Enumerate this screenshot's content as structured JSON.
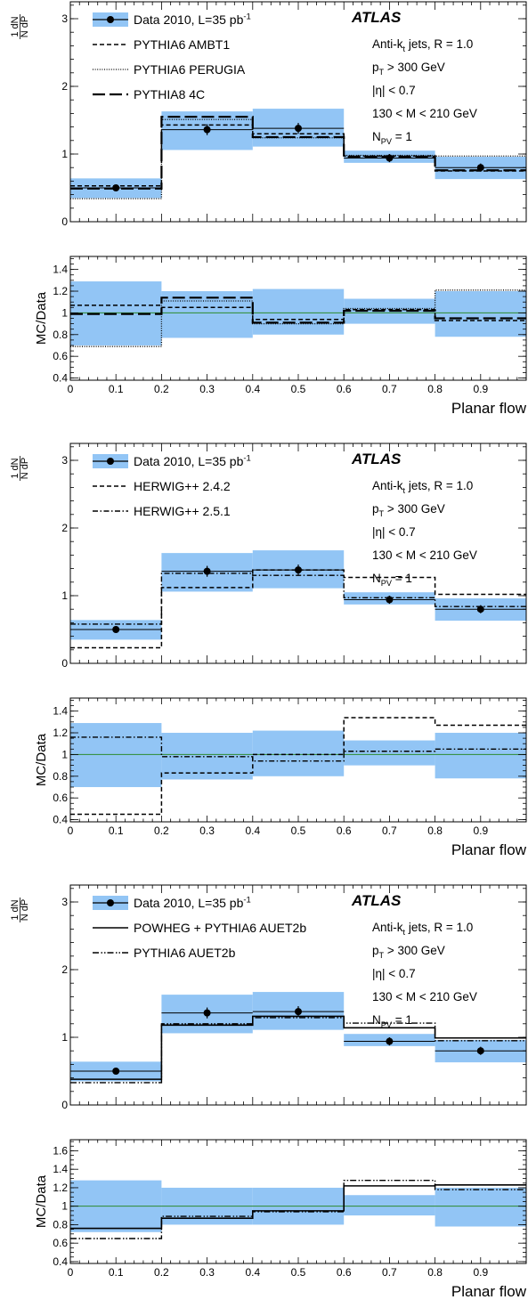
{
  "chart_data": [
    {
      "type": "step",
      "xlabel": "Planar flow",
      "ylabel_top": "1/N dN/dP",
      "ylabel_ratio": "MC/Data",
      "xlim": [
        0,
        1
      ],
      "ylim_top": [
        0,
        3.25
      ],
      "ylim_ratio": [
        0.38,
        1.52
      ],
      "ratio_ticks": [
        0.4,
        0.6,
        0.8,
        1,
        1.2,
        1.4
      ],
      "atlas_label": "ATLAS",
      "info_lines": [
        "Anti-k_t jets, R = 1.0",
        "p_T > 300 GeV",
        "|η| < 0.7",
        "130 < M < 210 GeV",
        "N_PV = 1"
      ],
      "data": {
        "name": "Data 2010, L=35 pb^-1",
        "bins": [
          [
            0,
            0.2
          ],
          [
            0.2,
            0.4
          ],
          [
            0.4,
            0.6
          ],
          [
            0.6,
            0.8
          ],
          [
            0.8,
            1.0
          ]
        ],
        "x": [
          0.1,
          0.3,
          0.5,
          0.7,
          0.9
        ],
        "y": [
          0.5,
          1.36,
          1.38,
          0.94,
          0.8
        ],
        "err": [
          0.03,
          0.08,
          0.08,
          0.06,
          0.06
        ],
        "band": [
          [
            0.35,
            0.64
          ],
          [
            1.06,
            1.63
          ],
          [
            1.11,
            1.67
          ],
          [
            0.87,
            1.05
          ],
          [
            0.63,
            0.96
          ]
        ],
        "ratio_band": [
          [
            0.7,
            1.29
          ],
          [
            0.77,
            1.2
          ],
          [
            0.8,
            1.22
          ],
          [
            0.9,
            1.13
          ],
          [
            0.78,
            1.2
          ]
        ]
      },
      "series": [
        {
          "name": "PYTHIA6 AMBT1",
          "style": "dashed",
          "y": [
            0.53,
            1.43,
            1.3,
            0.97,
            0.75
          ],
          "ratio": [
            1.07,
            1.05,
            0.94,
            1.03,
            0.93
          ]
        },
        {
          "name": "PYTHIA6 PERUGIA",
          "style": "dotted",
          "y": [
            0.34,
            1.51,
            1.24,
            0.98,
            0.97
          ],
          "ratio": [
            0.69,
            1.11,
            0.9,
            1.04,
            1.21
          ]
        },
        {
          "name": "PYTHIA8 4C",
          "style": "longdash",
          "y": [
            0.49,
            1.55,
            1.25,
            0.96,
            0.76
          ],
          "ratio": [
            0.99,
            1.14,
            0.91,
            1.02,
            0.95
          ]
        }
      ]
    },
    {
      "type": "step",
      "xlabel": "Planar flow",
      "ylabel_top": "1/N dN/dP",
      "ylabel_ratio": "MC/Data",
      "xlim": [
        0,
        1
      ],
      "ylim_top": [
        0,
        3.25
      ],
      "ylim_ratio": [
        0.38,
        1.52
      ],
      "ratio_ticks": [
        0.4,
        0.6,
        0.8,
        1,
        1.2,
        1.4
      ],
      "atlas_label": "ATLAS",
      "info_lines": [
        "Anti-k_t jets, R = 1.0",
        "p_T > 300 GeV",
        "|η| < 0.7",
        "130 < M < 210 GeV",
        "N_PV = 1"
      ],
      "data": {
        "name": "Data 2010, L=35 pb^-1",
        "bins": [
          [
            0,
            0.2
          ],
          [
            0.2,
            0.4
          ],
          [
            0.4,
            0.6
          ],
          [
            0.6,
            0.8
          ],
          [
            0.8,
            1.0
          ]
        ],
        "x": [
          0.1,
          0.3,
          0.5,
          0.7,
          0.9
        ],
        "y": [
          0.5,
          1.36,
          1.38,
          0.94,
          0.8
        ],
        "err": [
          0.03,
          0.08,
          0.08,
          0.06,
          0.06
        ],
        "band": [
          [
            0.35,
            0.64
          ],
          [
            1.06,
            1.63
          ],
          [
            1.11,
            1.67
          ],
          [
            0.87,
            1.05
          ],
          [
            0.63,
            0.96
          ]
        ],
        "ratio_band": [
          [
            0.7,
            1.29
          ],
          [
            0.77,
            1.2
          ],
          [
            0.8,
            1.22
          ],
          [
            0.9,
            1.13
          ],
          [
            0.78,
            1.2
          ]
        ]
      },
      "series": [
        {
          "name": "HERWIG++ 2.4.2",
          "style": "dashed",
          "y": [
            0.23,
            1.12,
            1.38,
            1.27,
            1.02
          ],
          "ratio": [
            0.45,
            0.83,
            1.0,
            1.34,
            1.27
          ]
        },
        {
          "name": "HERWIG++ 2.5.1",
          "style": "dashdot",
          "y": [
            0.58,
            1.33,
            1.3,
            0.97,
            0.84
          ],
          "ratio": [
            1.16,
            0.98,
            0.94,
            1.03,
            1.05
          ]
        }
      ]
    },
    {
      "type": "step",
      "xlabel": "Planar flow",
      "ylabel_top": "1/N dN/dP",
      "ylabel_ratio": "MC/Data",
      "xlim": [
        0,
        1
      ],
      "ylim_top": [
        0,
        3.25
      ],
      "ylim_ratio": [
        0.38,
        1.72
      ],
      "ratio_ticks": [
        0.4,
        0.6,
        0.8,
        1,
        1.2,
        1.4,
        1.6
      ],
      "atlas_label": "ATLAS",
      "info_lines": [
        "Anti-k_t jets, R = 1.0",
        "p_T > 300 GeV",
        "|η| < 0.7",
        "130 < M < 210 GeV",
        "N_PV = 1"
      ],
      "data": {
        "name": "Data 2010, L=35 pb^-1",
        "bins": [
          [
            0,
            0.2
          ],
          [
            0.2,
            0.4
          ],
          [
            0.4,
            0.6
          ],
          [
            0.6,
            0.8
          ],
          [
            0.8,
            1.0
          ]
        ],
        "x": [
          0.1,
          0.3,
          0.5,
          0.7,
          0.9
        ],
        "y": [
          0.5,
          1.36,
          1.38,
          0.94,
          0.8
        ],
        "err": [
          0.03,
          0.08,
          0.08,
          0.06,
          0.06
        ],
        "band": [
          [
            0.35,
            0.64
          ],
          [
            1.06,
            1.63
          ],
          [
            1.11,
            1.67
          ],
          [
            0.87,
            1.05
          ],
          [
            0.63,
            0.96
          ]
        ],
        "ratio_band": [
          [
            0.72,
            1.28
          ],
          [
            0.8,
            1.2
          ],
          [
            0.8,
            1.2
          ],
          [
            0.9,
            1.12
          ],
          [
            0.78,
            1.2
          ]
        ]
      },
      "series": [
        {
          "name": "POWHEG + PYTHIA6 AUET2b",
          "style": "solid",
          "y": [
            0.38,
            1.18,
            1.31,
            1.14,
            0.99
          ],
          "ratio": [
            0.76,
            0.87,
            0.95,
            1.22,
            1.23
          ]
        },
        {
          "name": "PYTHIA6 AUET2b",
          "style": "dashdotdot",
          "y": [
            0.33,
            1.2,
            1.29,
            1.21,
            0.95
          ],
          "ratio": [
            0.65,
            0.89,
            0.94,
            1.28,
            1.18
          ]
        }
      ]
    }
  ]
}
